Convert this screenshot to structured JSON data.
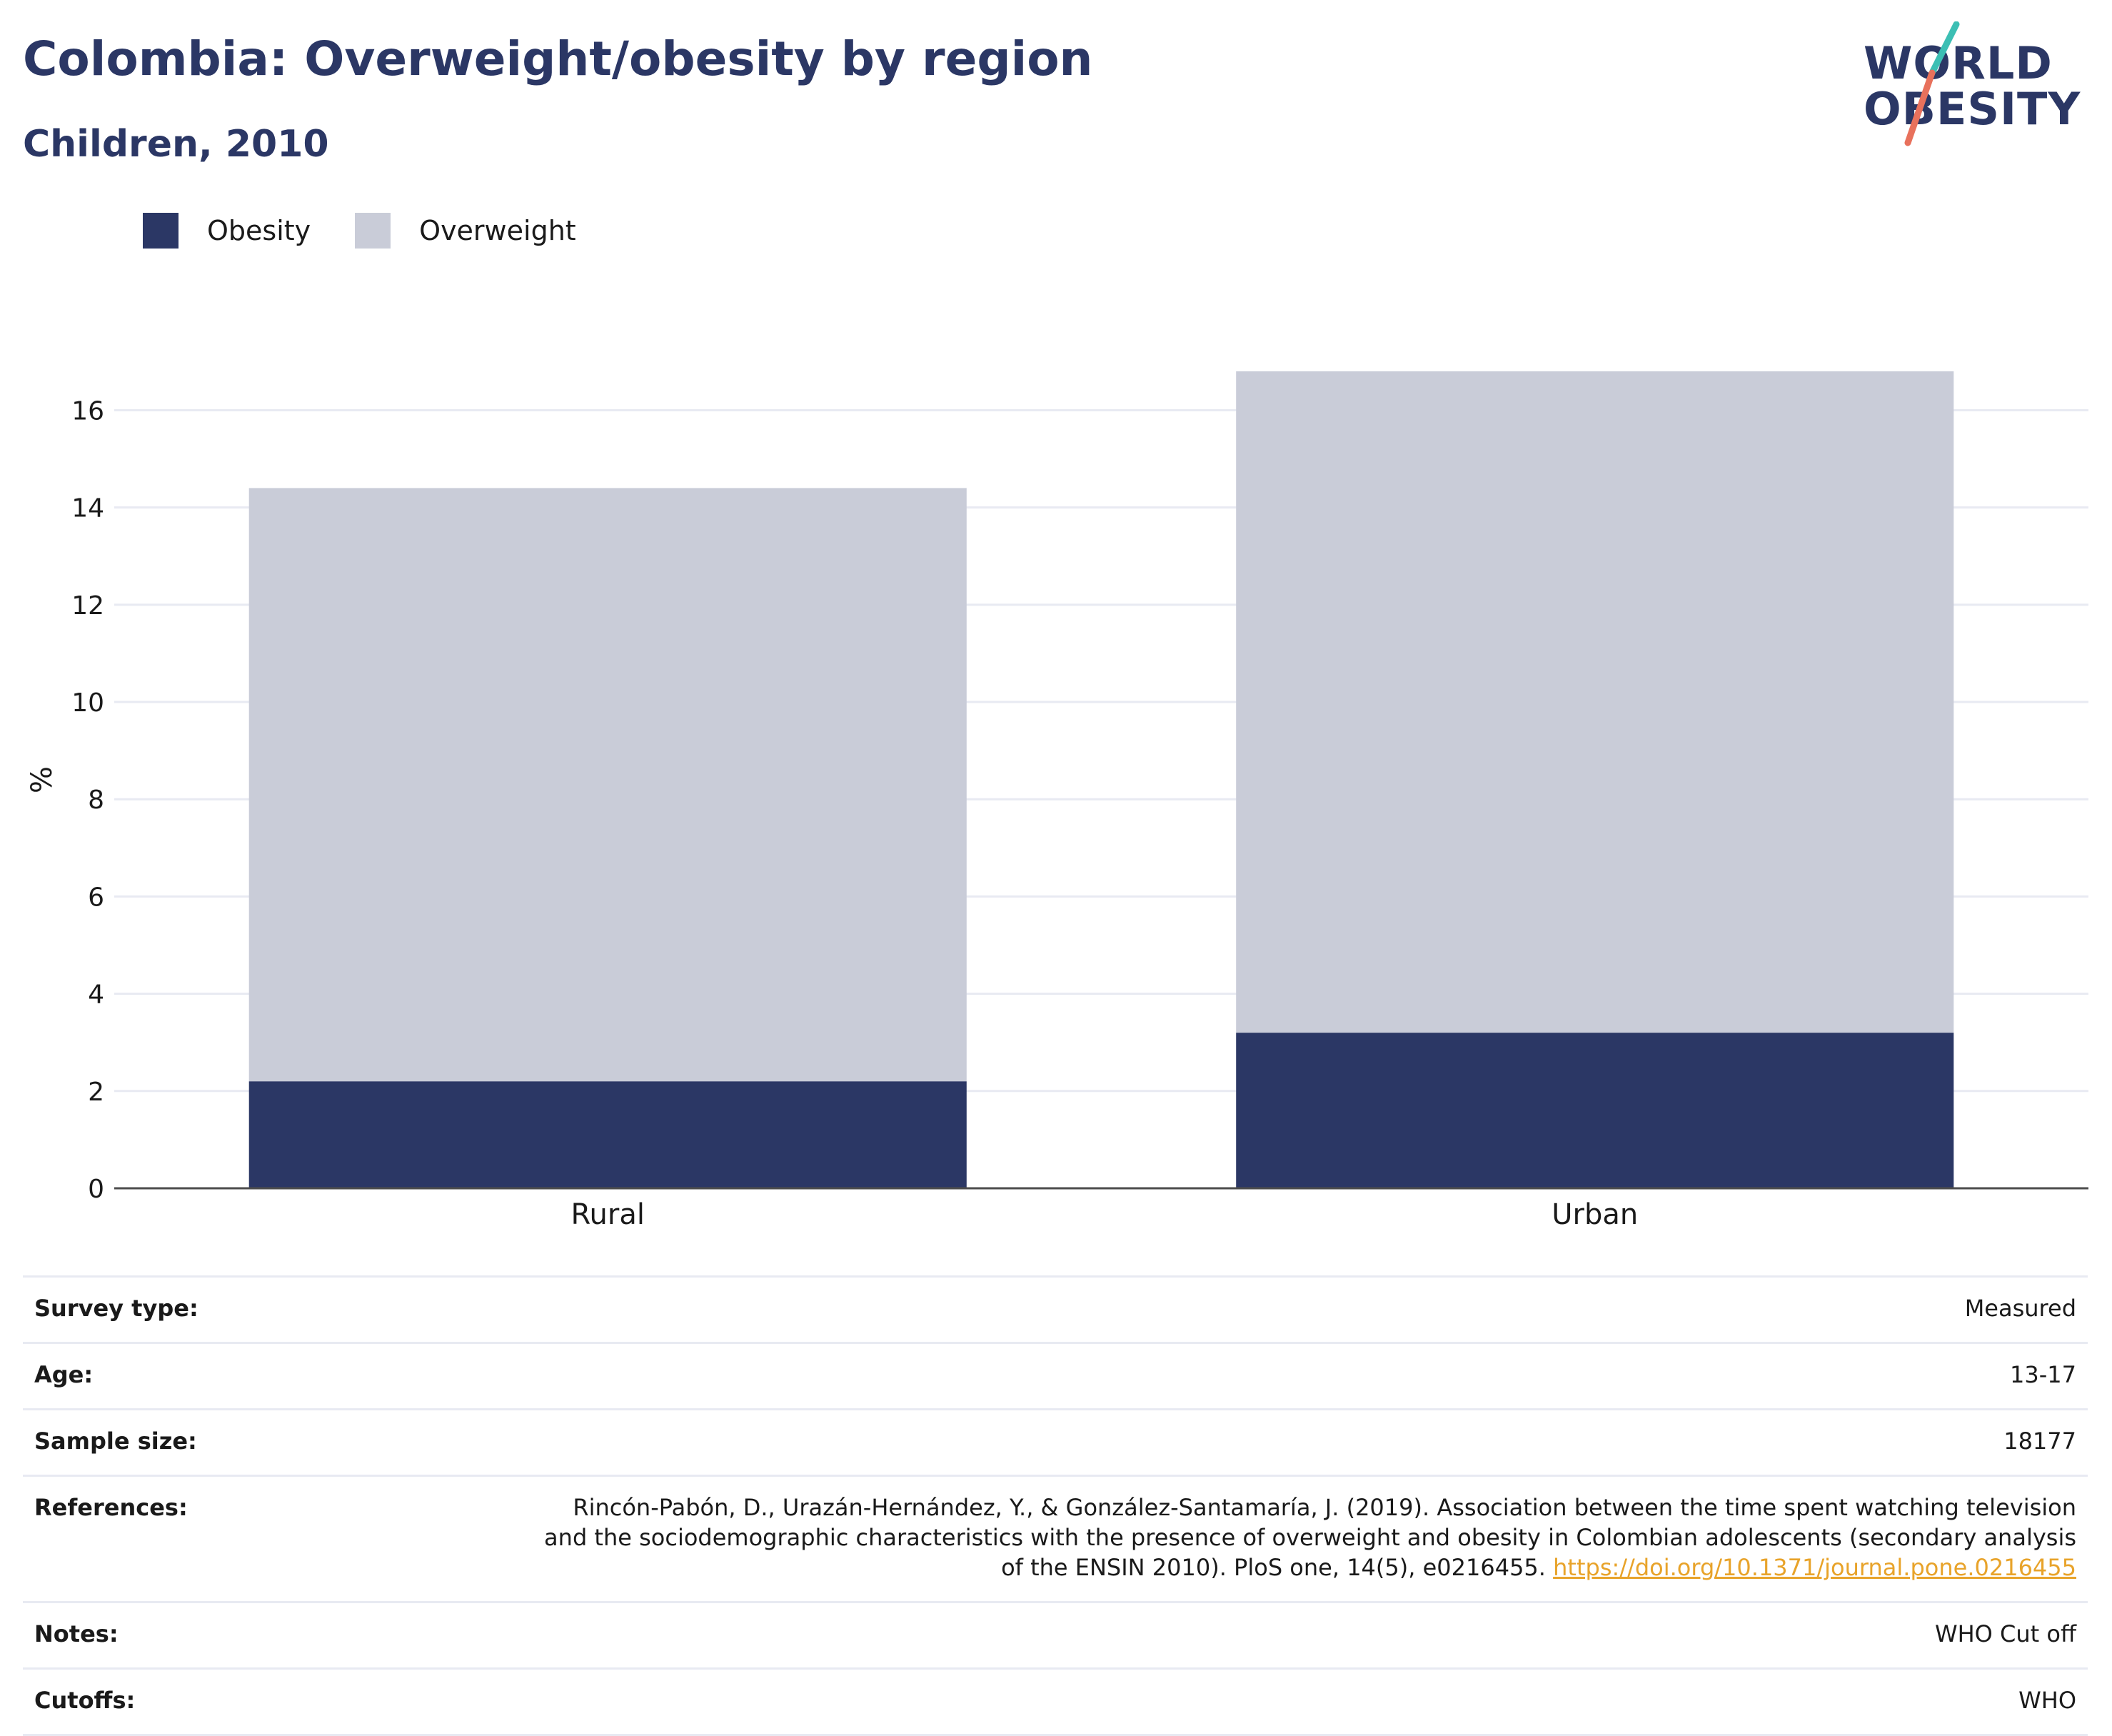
{
  "title": "Colombia: Overweight/obesity by region",
  "subtitle": "Children, 2010",
  "logo": {
    "line1": "WORLD",
    "line2": "OBESITY"
  },
  "colors": {
    "title": "#2b3765",
    "obesity": "#2b3765",
    "overweight": "#c9ccd8",
    "gridline": "#e8eaf2",
    "axis": "#4d4d4d",
    "link": "#e8a32a",
    "logo_teal": "#3cbfb4",
    "logo_coral": "#e8715c"
  },
  "legend": [
    {
      "label": "Obesity",
      "color": "#2b3765"
    },
    {
      "label": "Overweight",
      "color": "#c9ccd8"
    }
  ],
  "chart_data": {
    "type": "bar",
    "stacked": true,
    "categories": [
      "Rural",
      "Urban"
    ],
    "series": [
      {
        "name": "Obesity",
        "values": [
          2.2,
          3.2
        ]
      },
      {
        "name": "Overweight",
        "values": [
          12.2,
          13.6
        ]
      }
    ],
    "ylabel": "%",
    "xlabel": "",
    "ylim": [
      0,
      16.8
    ],
    "yticks": [
      0,
      2,
      4,
      6,
      8,
      10,
      12,
      14,
      16
    ],
    "grid": true,
    "legend_position": "top-left"
  },
  "meta": [
    {
      "label": "Survey type:",
      "value": "Measured"
    },
    {
      "label": "Age:",
      "value": "13-17"
    },
    {
      "label": "Sample size:",
      "value": "18177"
    },
    {
      "label": "References:",
      "value": "Rincón-Pabón, D., Urazán-Hernández, Y., & González-Santamaría, J. (2019). Association between the time spent watching television and the sociodemographic characteristics with the presence of overweight and obesity in Colombian adolescents (secondary analysis of the ENSIN 2010). PloS one, 14(5), e0216455. ",
      "link": "https://doi.org/10.1371/journal.pone.0216455"
    },
    {
      "label": "Notes:",
      "value": "WHO Cut off"
    },
    {
      "label": "Cutoffs:",
      "value": "WHO"
    }
  ]
}
